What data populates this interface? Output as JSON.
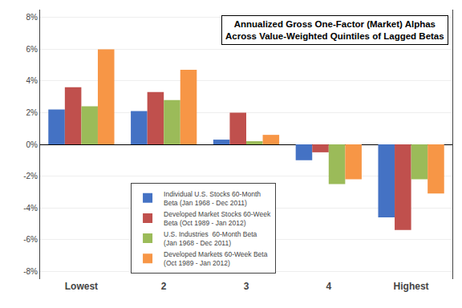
{
  "chart_data": {
    "type": "bar",
    "title": "Annualized Gross One-Factor (Market) Alphas\nAcross Value-Weighted Quintiles of Lagged Betas",
    "categories": [
      "Lowest",
      "2",
      "3",
      "4",
      "Highest"
    ],
    "series": [
      {
        "name": "Individual U.S. Stocks 60-Month\nBeta (Jan 1968 - Dec 2011)",
        "color": "#4472C4",
        "values": [
          0.022,
          0.021,
          0.003,
          -0.01,
          -0.046
        ]
      },
      {
        "name": "Developed Market Stocks 60-Week\nBeta (Oct 1989 - Jan 2012)",
        "color": "#C0504D",
        "values": [
          0.036,
          0.033,
          0.02,
          -0.005,
          -0.054
        ]
      },
      {
        "name": "U.S. Industries  60-Month Beta\n(Jan 1968 - Dec 2011)",
        "color": "#9BBB59",
        "values": [
          0.024,
          0.028,
          0.002,
          -0.025,
          -0.022
        ]
      },
      {
        "name": "Developed Markets 60-Week Beta\n(Oct 1989 - Jan 2012)",
        "color": "#F79646",
        "values": [
          0.06,
          0.047,
          0.006,
          -0.022,
          -0.031
        ]
      }
    ],
    "ylim": [
      -0.085,
      0.085
    ],
    "yticks": [
      {
        "value": -0.08,
        "label": "-8%"
      },
      {
        "value": -0.06,
        "label": "-6%"
      },
      {
        "value": -0.04,
        "label": "-4%"
      },
      {
        "value": -0.02,
        "label": "-2%"
      },
      {
        "value": 0.0,
        "label": "0%"
      },
      {
        "value": 0.02,
        "label": "2%"
      },
      {
        "value": 0.04,
        "label": "4%"
      },
      {
        "value": 0.06,
        "label": "6%"
      },
      {
        "value": 0.08,
        "label": "8%"
      }
    ],
    "grid": true,
    "legend": "lower left"
  }
}
